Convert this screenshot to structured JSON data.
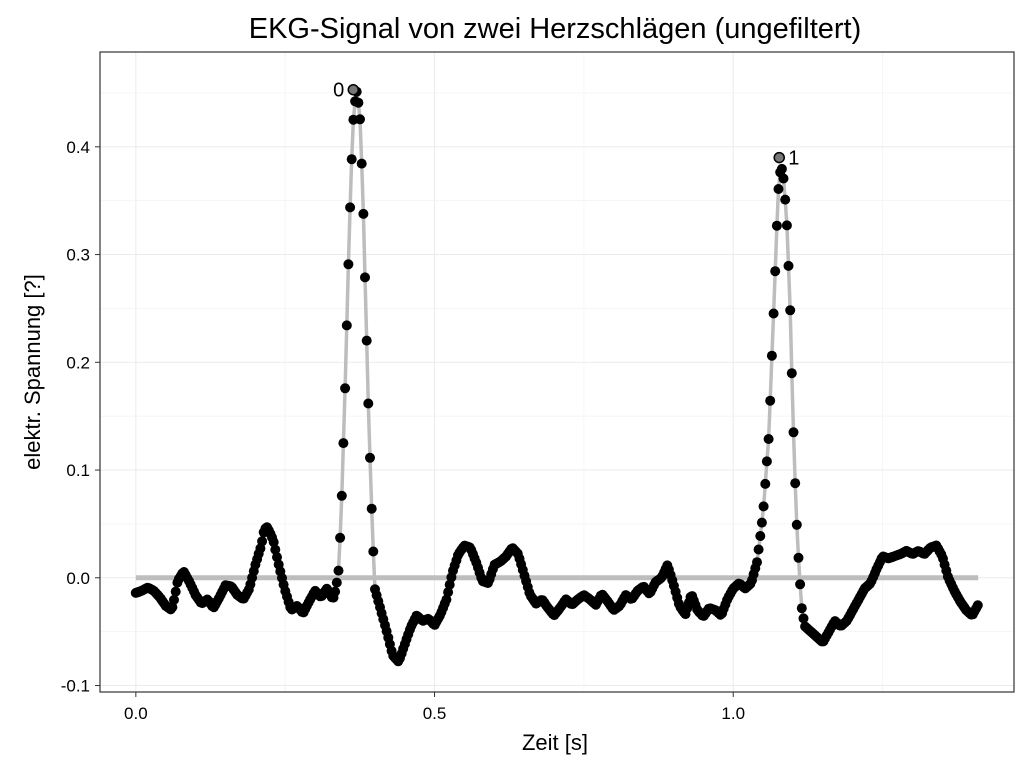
{
  "chart_data": {
    "type": "scatter",
    "title": "EKG-Signal von zwei Herzschlägen (ungefiltert)",
    "xlabel": "Zeit [s]",
    "ylabel": "elektr. Spannung [?]",
    "xlim": [
      -0.06,
      1.47
    ],
    "ylim": [
      -0.106,
      0.488
    ],
    "x_ticks": [
      0.0,
      0.5,
      1.0
    ],
    "x_tick_labels": [
      "0.0",
      "0.5",
      "1.0"
    ],
    "y_ticks": [
      -0.1,
      0.0,
      0.1,
      0.2,
      0.3,
      0.4
    ],
    "y_tick_labels": [
      "-0.1",
      "0.0",
      "0.1",
      "0.2",
      "0.3",
      "0.4"
    ],
    "grid": true,
    "colors": {
      "points": "#000000",
      "line": "#bdbdbd",
      "grid": "#ebebeb",
      "panel_border": "#333333"
    },
    "baseline": {
      "y": 0.0,
      "x_start": 0.0,
      "x_end": 1.41
    },
    "signal_keypoints": [
      [
        0.0,
        -0.014
      ],
      [
        0.01,
        -0.012
      ],
      [
        0.02,
        -0.009
      ],
      [
        0.03,
        -0.012
      ],
      [
        0.04,
        -0.018
      ],
      [
        0.05,
        -0.026
      ],
      [
        0.06,
        -0.03
      ],
      [
        0.065,
        -0.018
      ],
      [
        0.07,
        -0.003
      ],
      [
        0.08,
        0.006
      ],
      [
        0.09,
        -0.004
      ],
      [
        0.1,
        -0.016
      ],
      [
        0.11,
        -0.024
      ],
      [
        0.12,
        -0.02
      ],
      [
        0.13,
        -0.028
      ],
      [
        0.14,
        -0.018
      ],
      [
        0.15,
        -0.007
      ],
      [
        0.16,
        -0.008
      ],
      [
        0.17,
        -0.016
      ],
      [
        0.18,
        -0.02
      ],
      [
        0.19,
        -0.01
      ],
      [
        0.2,
        0.012
      ],
      [
        0.21,
        0.03
      ],
      [
        0.215,
        0.045
      ],
      [
        0.22,
        0.047
      ],
      [
        0.23,
        0.035
      ],
      [
        0.24,
        0.01
      ],
      [
        0.25,
        -0.012
      ],
      [
        0.26,
        -0.03
      ],
      [
        0.27,
        -0.026
      ],
      [
        0.28,
        -0.033
      ],
      [
        0.29,
        -0.022
      ],
      [
        0.3,
        -0.012
      ],
      [
        0.31,
        -0.018
      ],
      [
        0.32,
        -0.01
      ],
      [
        0.33,
        -0.02
      ],
      [
        0.335,
        -0.01
      ],
      [
        0.34,
        0.01
      ],
      [
        0.345,
        0.08
      ],
      [
        0.35,
        0.17
      ],
      [
        0.355,
        0.275
      ],
      [
        0.36,
        0.37
      ],
      [
        0.365,
        0.436
      ],
      [
        0.37,
        0.452
      ],
      [
        0.375,
        0.43
      ],
      [
        0.38,
        0.356
      ],
      [
        0.385,
        0.25
      ],
      [
        0.39,
        0.145
      ],
      [
        0.395,
        0.06
      ],
      [
        0.4,
        -0.01
      ],
      [
        0.41,
        -0.03
      ],
      [
        0.42,
        -0.05
      ],
      [
        0.43,
        -0.072
      ],
      [
        0.44,
        -0.078
      ],
      [
        0.45,
        -0.062
      ],
      [
        0.46,
        -0.046
      ],
      [
        0.47,
        -0.035
      ],
      [
        0.48,
        -0.04
      ],
      [
        0.49,
        -0.038
      ],
      [
        0.5,
        -0.044
      ],
      [
        0.51,
        -0.034
      ],
      [
        0.52,
        -0.02
      ],
      [
        0.53,
        0.005
      ],
      [
        0.54,
        0.022
      ],
      [
        0.55,
        0.03
      ],
      [
        0.56,
        0.028
      ],
      [
        0.57,
        0.014
      ],
      [
        0.58,
        -0.003
      ],
      [
        0.59,
        -0.005
      ],
      [
        0.6,
        0.012
      ],
      [
        0.61,
        0.015
      ],
      [
        0.62,
        0.02
      ],
      [
        0.63,
        0.028
      ],
      [
        0.64,
        0.022
      ],
      [
        0.65,
        0.003
      ],
      [
        0.66,
        -0.016
      ],
      [
        0.67,
        -0.024
      ],
      [
        0.68,
        -0.02
      ],
      [
        0.69,
        -0.028
      ],
      [
        0.7,
        -0.035
      ],
      [
        0.71,
        -0.028
      ],
      [
        0.72,
        -0.02
      ],
      [
        0.73,
        -0.025
      ],
      [
        0.74,
        -0.02
      ],
      [
        0.75,
        -0.016
      ],
      [
        0.76,
        -0.02
      ],
      [
        0.77,
        -0.025
      ],
      [
        0.78,
        -0.015
      ],
      [
        0.79,
        -0.022
      ],
      [
        0.8,
        -0.03
      ],
      [
        0.81,
        -0.026
      ],
      [
        0.82,
        -0.016
      ],
      [
        0.83,
        -0.02
      ],
      [
        0.84,
        -0.012
      ],
      [
        0.85,
        -0.008
      ],
      [
        0.86,
        -0.015
      ],
      [
        0.87,
        -0.004
      ],
      [
        0.88,
        0.0
      ],
      [
        0.89,
        0.012
      ],
      [
        0.9,
        -0.006
      ],
      [
        0.91,
        -0.026
      ],
      [
        0.92,
        -0.034
      ],
      [
        0.93,
        -0.015
      ],
      [
        0.94,
        -0.03
      ],
      [
        0.95,
        -0.036
      ],
      [
        0.96,
        -0.028
      ],
      [
        0.97,
        -0.03
      ],
      [
        0.98,
        -0.035
      ],
      [
        0.99,
        -0.02
      ],
      [
        1.0,
        -0.01
      ],
      [
        1.01,
        -0.005
      ],
      [
        1.02,
        -0.01
      ],
      [
        1.03,
        -0.005
      ],
      [
        1.04,
        0.015
      ],
      [
        1.05,
        0.06
      ],
      [
        1.06,
        0.135
      ],
      [
        1.065,
        0.21
      ],
      [
        1.07,
        0.28
      ],
      [
        1.075,
        0.356
      ],
      [
        1.08,
        0.384
      ],
      [
        1.085,
        0.368
      ],
      [
        1.09,
        0.325
      ],
      [
        1.095,
        0.255
      ],
      [
        1.1,
        0.15
      ],
      [
        1.105,
        0.065
      ],
      [
        1.11,
        0.01
      ],
      [
        1.115,
        -0.03
      ],
      [
        1.12,
        -0.045
      ],
      [
        1.13,
        -0.05
      ],
      [
        1.14,
        -0.055
      ],
      [
        1.15,
        -0.06
      ],
      [
        1.16,
        -0.05
      ],
      [
        1.17,
        -0.04
      ],
      [
        1.18,
        -0.045
      ],
      [
        1.19,
        -0.04
      ],
      [
        1.2,
        -0.03
      ],
      [
        1.21,
        -0.02
      ],
      [
        1.22,
        -0.01
      ],
      [
        1.23,
        -0.005
      ],
      [
        1.24,
        0.008
      ],
      [
        1.25,
        0.02
      ],
      [
        1.26,
        0.018
      ],
      [
        1.27,
        0.02
      ],
      [
        1.28,
        0.022
      ],
      [
        1.29,
        0.025
      ],
      [
        1.3,
        0.022
      ],
      [
        1.31,
        0.025
      ],
      [
        1.32,
        0.022
      ],
      [
        1.33,
        0.028
      ],
      [
        1.34,
        0.03
      ],
      [
        1.35,
        0.02
      ],
      [
        1.36,
        0.0
      ],
      [
        1.37,
        -0.012
      ],
      [
        1.38,
        -0.022
      ],
      [
        1.39,
        -0.03
      ],
      [
        1.4,
        -0.035
      ],
      [
        1.41,
        -0.025
      ]
    ],
    "peaks": [
      {
        "label": "0",
        "x": 0.364,
        "y": 0.453,
        "label_side": "left"
      },
      {
        "label": "1",
        "x": 1.077,
        "y": 0.39,
        "label_side": "right"
      }
    ]
  }
}
